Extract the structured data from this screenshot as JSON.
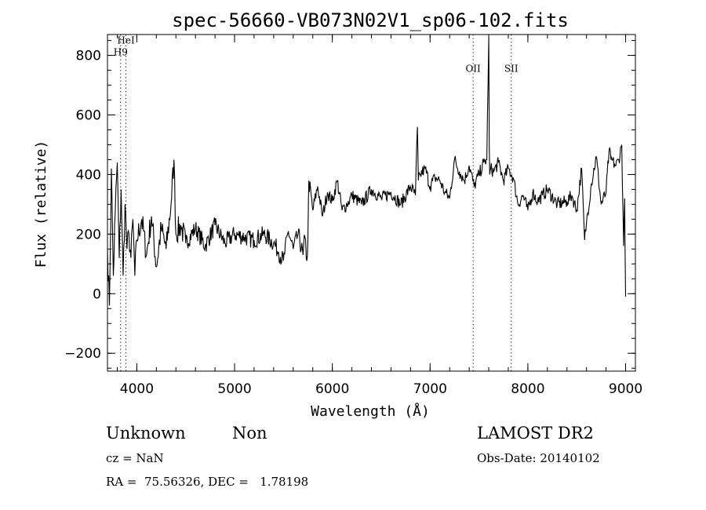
{
  "chart_data": {
    "type": "line",
    "title": "spec-56660-VB073N02V1_sp06-102.fits",
    "xlabel": "Wavelength (Å)",
    "ylabel": "Flux (relative)",
    "xlim": [
      3700,
      9100
    ],
    "ylim": [
      -260,
      870
    ],
    "x_ticks": [
      4000,
      5000,
      6000,
      7000,
      8000,
      9000
    ],
    "y_ticks": [
      -200,
      0,
      200,
      400,
      600,
      800
    ],
    "x_minor_step": 200,
    "y_minor_step": 50,
    "grid": false,
    "line_color": "#000000",
    "series": [
      {
        "x": [
          3700,
          3720,
          3740,
          3760,
          3780,
          3800,
          3820,
          3840,
          3860,
          3880,
          3900,
          3920,
          3940,
          3960,
          3980,
          4000,
          4050,
          4100,
          4150,
          4200,
          4250,
          4300,
          4350,
          4380,
          4400,
          4450,
          4500,
          4600,
          4700,
          4800,
          4900,
          5000,
          5100,
          5200,
          5300,
          5400,
          5450,
          5500,
          5550,
          5600,
          5650,
          5700,
          5720,
          5740,
          5750,
          5760,
          5800,
          5850,
          5900,
          5950,
          6000,
          6050,
          6100,
          6150,
          6200,
          6300,
          6400,
          6500,
          6600,
          6700,
          6800,
          6850,
          6870,
          6880,
          6900,
          6950,
          7000,
          7050,
          7100,
          7150,
          7200,
          7250,
          7300,
          7350,
          7400,
          7450,
          7500,
          7550,
          7580,
          7600,
          7605,
          7610,
          7620,
          7650,
          7700,
          7750,
          7800,
          7850,
          7900,
          7950,
          8000,
          8050,
          8100,
          8150,
          8200,
          8300,
          8400,
          8450,
          8500,
          8550,
          8580,
          8600,
          8650,
          8700,
          8750,
          8800,
          8830,
          8850,
          8900,
          8930,
          8960,
          8980,
          8990,
          9000
        ],
        "y": [
          150,
          -40,
          420,
          60,
          280,
          440,
          120,
          350,
          60,
          300,
          150,
          200,
          120,
          250,
          60,
          180,
          250,
          130,
          260,
          90,
          220,
          150,
          300,
          450,
          200,
          230,
          170,
          220,
          160,
          230,
          170,
          200,
          190,
          180,
          200,
          170,
          140,
          110,
          210,
          150,
          200,
          130,
          190,
          110,
          180,
          380,
          280,
          360,
          260,
          340,
          310,
          380,
          280,
          300,
          330,
          300,
          350,
          320,
          340,
          300,
          360,
          330,
          560,
          380,
          400,
          420,
          360,
          390,
          380,
          340,
          320,
          450,
          410,
          380,
          430,
          360,
          400,
          440,
          450,
          860,
          490,
          400,
          420,
          410,
          440,
          380,
          420,
          390,
          300,
          330,
          280,
          340,
          310,
          330,
          350,
          300,
          310,
          330,
          280,
          420,
          180,
          240,
          370,
          460,
          300,
          340,
          480,
          450,
          430,
          450,
          500,
          160,
          320,
          -10
        ]
      }
    ],
    "line_markers": [
      {
        "label": "HeI",
        "x": 3889,
        "label_y": 840
      },
      {
        "label": "H9",
        "x": 3835,
        "label_y": 800
      },
      {
        "label": "OII",
        "x": 7440,
        "label_y": 745
      },
      {
        "label": "SII",
        "x": 7830,
        "label_y": 745
      }
    ]
  },
  "footer": {
    "object_class": "Unknown",
    "subclass": "Non",
    "survey": "LAMOST DR2",
    "cz": "cz = NaN",
    "obs_date": "Obs-Date: 20140102",
    "coords": "RA =  75.56326, DEC =   1.78198"
  }
}
